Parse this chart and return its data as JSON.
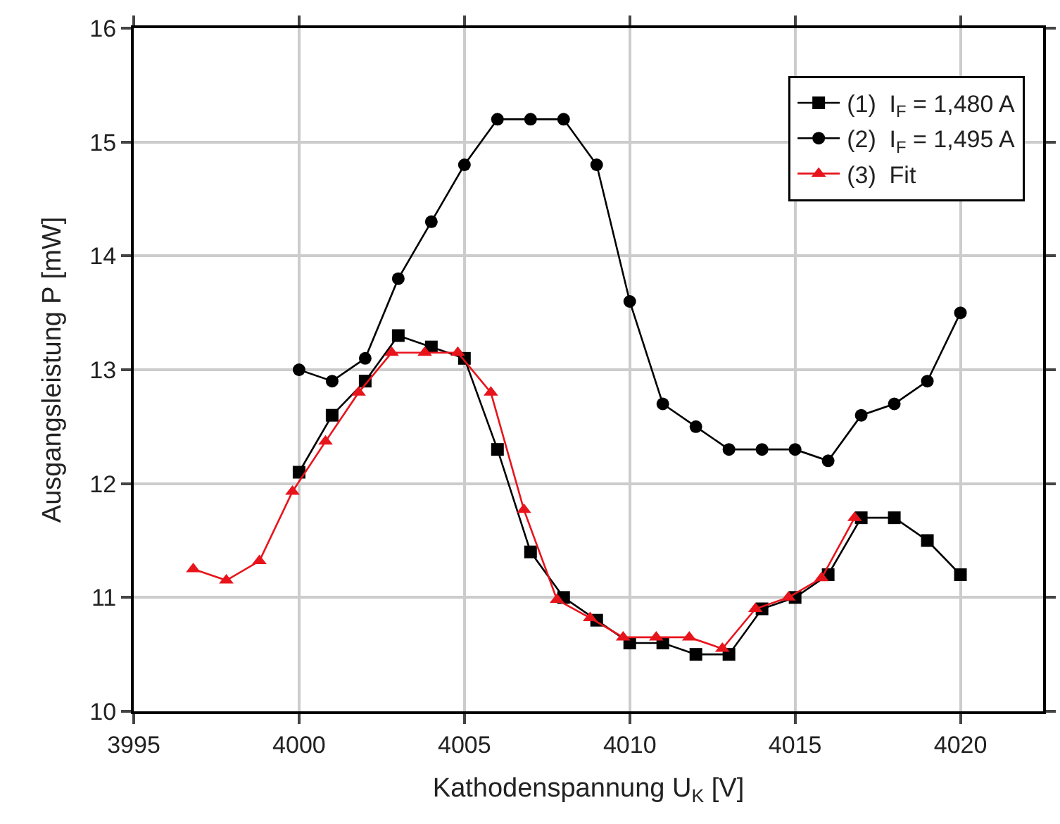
{
  "chart_data": {
    "type": "line",
    "xlabel": "Kathodenspannung U$_{K}$ [V]",
    "ylabel": "Ausgangsleistung P [mW]",
    "xlim": [
      3995,
      4022.5
    ],
    "xticks": [
      3995,
      4000,
      4005,
      4010,
      4015,
      4020
    ],
    "ylim": [
      10,
      16
    ],
    "yticks": [
      10,
      11,
      12,
      13,
      14,
      15,
      16
    ],
    "grid": true,
    "legend": "top right",
    "line_style": "solid",
    "series": [
      {
        "name": "(1)  I$_{F}$ = 1,480 A",
        "color": "#000000",
        "marker": "square",
        "x": [
          4000,
          4001,
          4002,
          4003,
          4004,
          4005,
          4006,
          4007,
          4008,
          4009,
          4010,
          4011,
          4012,
          4013,
          4014,
          4015,
          4016,
          4017,
          4018,
          4019,
          4020
        ],
        "values": [
          12.1,
          12.6,
          12.9,
          13.3,
          13.2,
          13.1,
          12.3,
          11.4,
          11.0,
          10.8,
          10.6,
          10.6,
          10.5,
          10.5,
          10.9,
          11.0,
          11.2,
          11.7,
          11.7,
          11.5,
          11.2
        ]
      },
      {
        "name": "(2)  I$_{F}$ = 1,495 A",
        "color": "#000000",
        "marker": "circle",
        "x": [
          4000,
          4001,
          4002,
          4003,
          4004,
          4005,
          4006,
          4007,
          4008,
          4009,
          4010,
          4011,
          4012,
          4013,
          4014,
          4015,
          4016,
          4017,
          4018,
          4019,
          4020
        ],
        "values": [
          13.0,
          12.9,
          13.1,
          13.8,
          14.3,
          14.8,
          15.2,
          15.2,
          15.2,
          14.8,
          13.6,
          12.7,
          12.5,
          12.3,
          12.3,
          12.3,
          12.2,
          12.6,
          12.7,
          12.9,
          13.5
        ]
      },
      {
        "name": "(3)  Fit",
        "color": "#e8141c",
        "marker": "triangle",
        "x": [
          3996.8,
          3997.8,
          3998.8,
          3999.8,
          4000.8,
          4001.8,
          4002.8,
          4003.8,
          4004.8,
          4005.8,
          4006.8,
          4007.8,
          4008.8,
          4009.8,
          4010.8,
          4011.8,
          4012.8,
          4013.8,
          4014.8,
          4015.8,
          4016.8
        ],
        "values": [
          11.25,
          11.15,
          11.32,
          11.93,
          12.37,
          12.8,
          13.15,
          13.15,
          13.15,
          12.8,
          11.77,
          10.98,
          10.82,
          10.65,
          10.65,
          10.65,
          10.55,
          10.9,
          11.0,
          11.17,
          11.7
        ]
      }
    ]
  }
}
